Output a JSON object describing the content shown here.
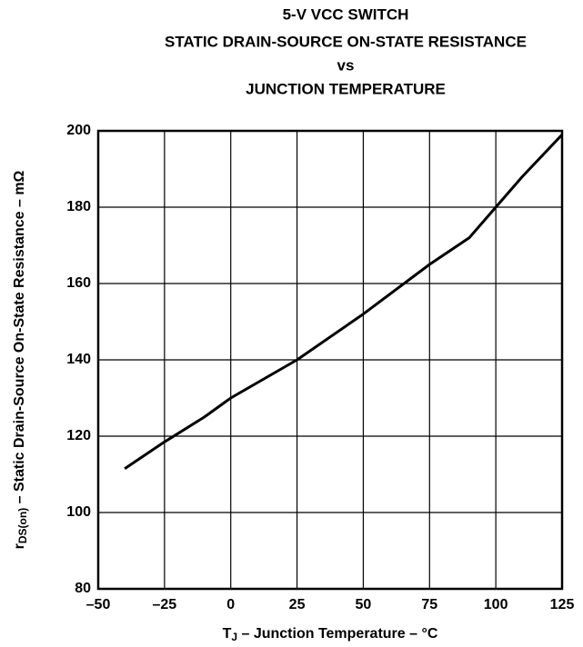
{
  "chart_data": {
    "type": "line",
    "title": [
      "5-V VCC SWITCH",
      "STATIC DRAIN-SOURCE ON-STATE RESISTANCE",
      "vs",
      "JUNCTION TEMPERATURE"
    ],
    "xlabel": {
      "symbol": "T",
      "subscript": "J",
      "text": " – Junction Temperature – °C"
    },
    "ylabel": {
      "symbol": "r",
      "subscript": "DS(on)",
      "text": " – Static Drain-Source On-State Resistance – mΩ"
    },
    "x": [
      -40,
      -25,
      -10,
      0,
      25,
      50,
      75,
      90,
      100,
      110,
      125
    ],
    "values": [
      111.5,
      118.5,
      125,
      130,
      140,
      152,
      165,
      172,
      180,
      188,
      199
    ],
    "color": "#000000",
    "xlim": [
      -50,
      125
    ],
    "xticks": [
      {
        "value": -50,
        "label": "–50"
      },
      {
        "value": -25,
        "label": "–25"
      },
      0,
      25,
      50,
      75,
      100,
      125
    ],
    "ylim": [
      80,
      200
    ],
    "yticks": [
      80,
      100,
      120,
      140,
      160,
      180,
      200
    ],
    "grid": true
  }
}
